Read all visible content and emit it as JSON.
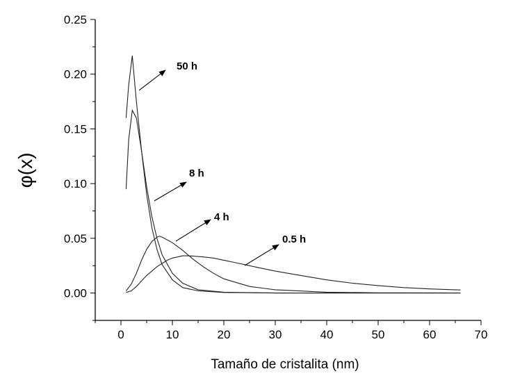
{
  "chart_data": {
    "type": "line",
    "xlabel": "Tamaño de cristalita (nm)",
    "ylabel": "φ(x)",
    "xlim": [
      -5,
      70
    ],
    "ylim": [
      -0.025,
      0.25
    ],
    "x_ticks": [
      "0",
      "10",
      "20",
      "30",
      "40",
      "50",
      "60",
      "70"
    ],
    "y_ticks": [
      "0.00",
      "0.05",
      "0.10",
      "0.15",
      "0.20",
      "0.25"
    ],
    "grid": false,
    "legend": "none",
    "series": [
      {
        "name": "50 h",
        "x": [
          1,
          1.5,
          2.2,
          3,
          4,
          5,
          6,
          7,
          8,
          10,
          12,
          15,
          20,
          30,
          40,
          50,
          66
        ],
        "y": [
          0.16,
          0.19,
          0.217,
          0.175,
          0.13,
          0.09,
          0.06,
          0.04,
          0.026,
          0.012,
          0.005,
          0.002,
          0.0005,
          0,
          0,
          0,
          0
        ]
      },
      {
        "name": "8 h",
        "x": [
          1,
          1.5,
          2.2,
          3,
          4,
          5,
          6,
          7,
          8,
          10,
          12,
          15,
          20,
          30,
          40,
          50,
          66
        ],
        "y": [
          0.095,
          0.14,
          0.167,
          0.16,
          0.13,
          0.097,
          0.07,
          0.05,
          0.035,
          0.018,
          0.009,
          0.003,
          0.0008,
          0,
          0,
          0,
          0
        ]
      },
      {
        "name": "4 h",
        "x": [
          1,
          2,
          3,
          4,
          5,
          6,
          7,
          7.5,
          8,
          10,
          12,
          14,
          16,
          18,
          20,
          25,
          30,
          40,
          50,
          66
        ],
        "y": [
          0.002,
          0.008,
          0.018,
          0.03,
          0.04,
          0.047,
          0.051,
          0.052,
          0.051,
          0.046,
          0.039,
          0.031,
          0.024,
          0.018,
          0.013,
          0.006,
          0.003,
          0.0008,
          0.0002,
          0.0001
        ]
      },
      {
        "name": "0.5 h",
        "x": [
          1,
          2,
          3,
          4,
          5,
          6,
          7,
          8,
          9,
          10,
          11,
          12,
          13,
          14,
          16,
          18,
          20,
          22,
          25,
          30,
          35,
          40,
          45,
          50,
          55,
          60,
          66
        ],
        "y": [
          0.0005,
          0.002,
          0.006,
          0.011,
          0.016,
          0.02,
          0.024,
          0.027,
          0.03,
          0.032,
          0.033,
          0.034,
          0.034,
          0.0338,
          0.033,
          0.032,
          0.03,
          0.028,
          0.025,
          0.02,
          0.016,
          0.012,
          0.009,
          0.0068,
          0.005,
          0.0038,
          0.0028
        ]
      }
    ],
    "annotations": [
      {
        "text": "50 h",
        "series": 0
      },
      {
        "text": "8 h",
        "series": 1
      },
      {
        "text": "4 h",
        "series": 2
      },
      {
        "text": "0.5 h",
        "series": 3
      }
    ]
  }
}
